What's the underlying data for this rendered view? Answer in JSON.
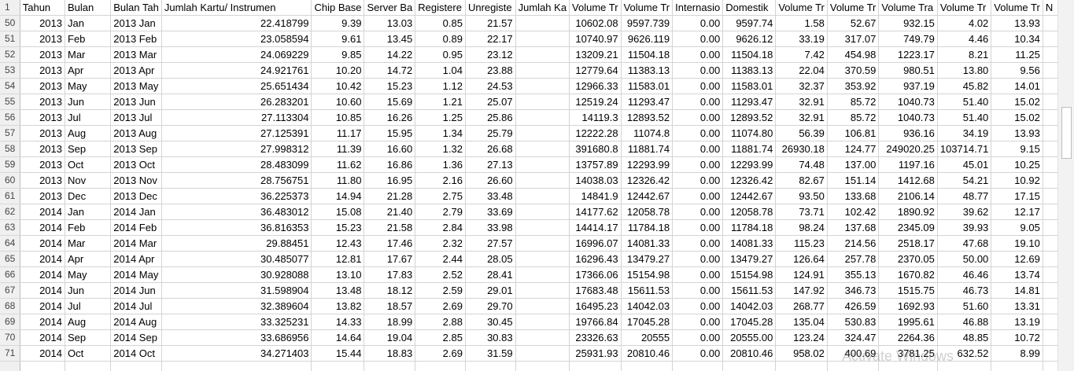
{
  "columns": [
    "Tahun",
    "Bulan",
    "Bulan Tah",
    "Jumlah Kartu/ Instrumen",
    "Chip Base",
    "Server Ba",
    "Registere",
    "Unregiste",
    "Jumlah Ka",
    "Volume Tr",
    "Volume Tr",
    "Internasio",
    "Domestik",
    "Volume Tr",
    "Volume Tr",
    "Volume Tra",
    "Volume Tr",
    "Volume Tr",
    "N"
  ],
  "header_row_number": "1",
  "rows": [
    {
      "n": "50",
      "c": [
        "2013",
        "Jan",
        "2013 Jan",
        "22.418799",
        "9.39",
        "13.03",
        "0.85",
        "21.57",
        "",
        "10602.08",
        "9597.739",
        "0.00",
        "9597.74",
        "1.58",
        "52.67",
        "932.15",
        "4.02",
        "13.93"
      ]
    },
    {
      "n": "51",
      "c": [
        "2013",
        "Feb",
        "2013 Feb",
        "23.058594",
        "9.61",
        "13.45",
        "0.89",
        "22.17",
        "",
        "10740.97",
        "9626.119",
        "0.00",
        "9626.12",
        "33.19",
        "317.07",
        "749.79",
        "4.46",
        "10.34"
      ]
    },
    {
      "n": "52",
      "c": [
        "2013",
        "Mar",
        "2013 Mar",
        "24.069229",
        "9.85",
        "14.22",
        "0.95",
        "23.12",
        "",
        "13209.21",
        "11504.18",
        "0.00",
        "11504.18",
        "7.42",
        "454.98",
        "1223.17",
        "8.21",
        "11.25"
      ]
    },
    {
      "n": "53",
      "c": [
        "2013",
        "Apr",
        "2013 Apr",
        "24.921761",
        "10.20",
        "14.72",
        "1.04",
        "23.88",
        "",
        "12779.64",
        "11383.13",
        "0.00",
        "11383.13",
        "22.04",
        "370.59",
        "980.51",
        "13.80",
        "9.56"
      ]
    },
    {
      "n": "54",
      "c": [
        "2013",
        "May",
        "2013 May",
        "25.651434",
        "10.42",
        "15.23",
        "1.12",
        "24.53",
        "",
        "12966.33",
        "11583.01",
        "0.00",
        "11583.01",
        "32.37",
        "353.92",
        "937.19",
        "45.82",
        "14.01"
      ]
    },
    {
      "n": "55",
      "c": [
        "2013",
        "Jun",
        "2013 Jun",
        "26.283201",
        "10.60",
        "15.69",
        "1.21",
        "25.07",
        "",
        "12519.24",
        "11293.47",
        "0.00",
        "11293.47",
        "32.91",
        "85.72",
        "1040.73",
        "51.40",
        "15.02"
      ]
    },
    {
      "n": "56",
      "c": [
        "2013",
        "Jul",
        "2013 Jul",
        "27.113304",
        "10.85",
        "16.26",
        "1.25",
        "25.86",
        "",
        "14119.3",
        "12893.52",
        "0.00",
        "12893.52",
        "32.91",
        "85.72",
        "1040.73",
        "51.40",
        "15.02"
      ]
    },
    {
      "n": "57",
      "c": [
        "2013",
        "Aug",
        "2013 Aug",
        "27.125391",
        "11.17",
        "15.95",
        "1.34",
        "25.79",
        "",
        "12222.28",
        "11074.8",
        "0.00",
        "11074.80",
        "56.39",
        "106.81",
        "936.16",
        "34.19",
        "13.93"
      ]
    },
    {
      "n": "58",
      "c": [
        "2013",
        "Sep",
        "2013 Sep",
        "27.998312",
        "11.39",
        "16.60",
        "1.32",
        "26.68",
        "",
        "391680.8",
        "11881.74",
        "0.00",
        "11881.74",
        "26930.18",
        "124.77",
        "249020.25",
        "103714.71",
        "9.15"
      ]
    },
    {
      "n": "59",
      "c": [
        "2013",
        "Oct",
        "2013 Oct",
        "28.483099",
        "11.62",
        "16.86",
        "1.36",
        "27.13",
        "",
        "13757.89",
        "12293.99",
        "0.00",
        "12293.99",
        "74.48",
        "137.00",
        "1197.16",
        "45.01",
        "10.25"
      ]
    },
    {
      "n": "60",
      "c": [
        "2013",
        "Nov",
        "2013 Nov",
        "28.756751",
        "11.80",
        "16.95",
        "2.16",
        "26.60",
        "",
        "14038.03",
        "12326.42",
        "0.00",
        "12326.42",
        "82.67",
        "151.14",
        "1412.68",
        "54.21",
        "10.92"
      ]
    },
    {
      "n": "61",
      "c": [
        "2013",
        "Dec",
        "2013 Dec",
        "36.225373",
        "14.94",
        "21.28",
        "2.75",
        "33.48",
        "",
        "14841.9",
        "12442.67",
        "0.00",
        "12442.67",
        "93.50",
        "133.68",
        "2106.14",
        "48.77",
        "17.15"
      ]
    },
    {
      "n": "62",
      "c": [
        "2014",
        "Jan",
        "2014 Jan",
        "36.483012",
        "15.08",
        "21.40",
        "2.79",
        "33.69",
        "",
        "14177.62",
        "12058.78",
        "0.00",
        "12058.78",
        "73.71",
        "102.42",
        "1890.92",
        "39.62",
        "12.17"
      ]
    },
    {
      "n": "63",
      "c": [
        "2014",
        "Feb",
        "2014 Feb",
        "36.816353",
        "15.23",
        "21.58",
        "2.84",
        "33.98",
        "",
        "14414.17",
        "11784.18",
        "0.00",
        "11784.18",
        "98.24",
        "137.68",
        "2345.09",
        "39.93",
        "9.05"
      ]
    },
    {
      "n": "64",
      "c": [
        "2014",
        "Mar",
        "2014 Mar",
        "29.88451",
        "12.43",
        "17.46",
        "2.32",
        "27.57",
        "",
        "16996.07",
        "14081.33",
        "0.00",
        "14081.33",
        "115.23",
        "214.56",
        "2518.17",
        "47.68",
        "19.10"
      ]
    },
    {
      "n": "65",
      "c": [
        "2014",
        "Apr",
        "2014 Apr",
        "30.485077",
        "12.81",
        "17.67",
        "2.44",
        "28.05",
        "",
        "16296.43",
        "13479.27",
        "0.00",
        "13479.27",
        "126.64",
        "257.78",
        "2370.05",
        "50.00",
        "12.69"
      ]
    },
    {
      "n": "66",
      "c": [
        "2014",
        "May",
        "2014 May",
        "30.928088",
        "13.10",
        "17.83",
        "2.52",
        "28.41",
        "",
        "17366.06",
        "15154.98",
        "0.00",
        "15154.98",
        "124.91",
        "355.13",
        "1670.82",
        "46.46",
        "13.74"
      ]
    },
    {
      "n": "67",
      "c": [
        "2014",
        "Jun",
        "2014 Jun",
        "31.598904",
        "13.48",
        "18.12",
        "2.59",
        "29.01",
        "",
        "17683.48",
        "15611.53",
        "0.00",
        "15611.53",
        "147.92",
        "346.73",
        "1515.75",
        "46.73",
        "14.81"
      ]
    },
    {
      "n": "68",
      "c": [
        "2014",
        "Jul",
        "2014 Jul",
        "32.389604",
        "13.82",
        "18.57",
        "2.69",
        "29.70",
        "",
        "16495.23",
        "14042.03",
        "0.00",
        "14042.03",
        "268.77",
        "426.59",
        "1692.93",
        "51.60",
        "13.31"
      ]
    },
    {
      "n": "69",
      "c": [
        "2014",
        "Aug",
        "2014 Aug",
        "33.325231",
        "14.33",
        "18.99",
        "2.88",
        "30.45",
        "",
        "19766.84",
        "17045.28",
        "0.00",
        "17045.28",
        "135.04",
        "530.83",
        "1995.61",
        "46.88",
        "13.19"
      ]
    },
    {
      "n": "70",
      "c": [
        "2014",
        "Sep",
        "2014 Sep",
        "33.686956",
        "14.64",
        "19.04",
        "2.85",
        "30.83",
        "",
        "23326.63",
        "20555",
        "0.00",
        "20555.00",
        "123.24",
        "324.47",
        "2264.36",
        "48.85",
        "10.72"
      ]
    },
    {
      "n": "71",
      "c": [
        "2014",
        "Oct",
        "2014 Oct",
        "34.271403",
        "15.44",
        "18.83",
        "2.69",
        "31.59",
        "",
        "25931.93",
        "20810.46",
        "0.00",
        "20810.46",
        "958.02",
        "400.69",
        "3781.25",
        "632.52",
        "8.99"
      ]
    }
  ],
  "watermark": "Activate Windows"
}
